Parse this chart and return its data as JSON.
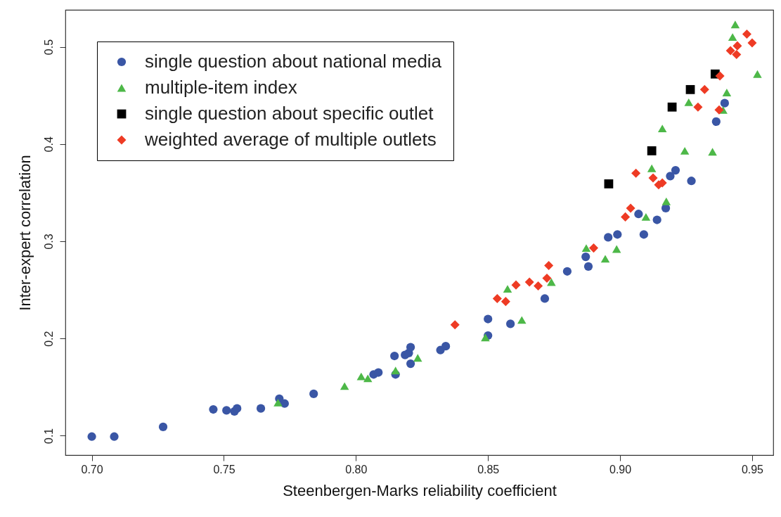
{
  "chart_data": {
    "type": "scatter",
    "xlabel": "Steenbergen-Marks reliability coefficient",
    "ylabel": "Inter-expert correlation",
    "xlim": [
      0.69,
      0.958
    ],
    "ylim": [
      0.08,
      0.538
    ],
    "xticks": [
      {
        "value": 0.7,
        "label": "0.70"
      },
      0.75,
      {
        "value": 0.8,
        "label": "0.80"
      },
      0.85,
      {
        "value": 0.9,
        "label": "0.90"
      },
      0.95
    ],
    "yticks": [
      0.1,
      0.2,
      0.3,
      0.4,
      0.5
    ],
    "grid": false,
    "legend": "top left",
    "series": [
      {
        "name": "single question about national media",
        "color": "#3a56a5",
        "marker": "circle",
        "x": [
          0.7,
          0.7085,
          0.727,
          0.746,
          0.751,
          0.754,
          0.755,
          0.764,
          0.771,
          0.773,
          0.784,
          0.8067,
          0.8085,
          0.815,
          0.8146,
          0.8186,
          0.82,
          0.8207,
          0.8207,
          0.832,
          0.834,
          0.85,
          0.85,
          0.8585,
          0.8715,
          0.88,
          0.887,
          0.888,
          0.8955,
          0.899,
          0.909,
          0.907,
          0.914,
          0.921,
          0.919,
          0.927,
          0.9396,
          0.9364,
          0.9173
        ],
        "values": [
          0.099,
          0.099,
          0.109,
          0.127,
          0.126,
          0.125,
          0.128,
          0.128,
          0.138,
          0.133,
          0.143,
          0.163,
          0.165,
          0.163,
          0.182,
          0.183,
          0.185,
          0.191,
          0.174,
          0.188,
          0.192,
          0.22,
          0.203,
          0.215,
          0.241,
          0.269,
          0.284,
          0.274,
          0.304,
          0.307,
          0.307,
          0.328,
          0.322,
          0.373,
          0.367,
          0.362,
          0.442,
          0.423,
          0.334
        ]
      },
      {
        "name": "multiple-item index",
        "color": "#4db848",
        "marker": "triangle",
        "x": [
          0.7705,
          0.7957,
          0.802,
          0.8045,
          0.815,
          0.8234,
          0.849,
          0.8574,
          0.8628,
          0.874,
          0.8872,
          0.8944,
          0.8987,
          0.9098,
          0.912,
          0.9175,
          0.916,
          0.9245,
          0.935,
          0.926,
          0.9404,
          0.939,
          0.9426,
          0.9436,
          0.952
        ],
        "values": [
          0.134,
          0.151,
          0.161,
          0.159,
          0.167,
          0.18,
          0.201,
          0.251,
          0.219,
          0.258,
          0.293,
          0.282,
          0.292,
          0.325,
          0.375,
          0.341,
          0.416,
          0.393,
          0.392,
          0.443,
          0.453,
          0.435,
          0.51,
          0.523,
          0.472
        ]
      },
      {
        "name": "single question about specific outlet",
        "color": "#000000",
        "marker": "square",
        "x": [
          0.8957,
          0.912,
          0.9197,
          0.9266,
          0.936
        ],
        "values": [
          0.359,
          0.393,
          0.438,
          0.456,
          0.472
        ]
      },
      {
        "name": "weighted average of multiple outlets",
        "color": "#ee3b24",
        "marker": "diamond",
        "x": [
          0.8375,
          0.8535,
          0.8567,
          0.8606,
          0.8657,
          0.869,
          0.8723,
          0.873,
          0.89,
          0.902,
          0.904,
          0.906,
          0.9125,
          0.9146,
          0.916,
          0.9295,
          0.932,
          0.9378,
          0.9375,
          0.948,
          0.95,
          0.9444,
          0.9418,
          0.9441
        ],
        "values": [
          0.214,
          0.241,
          0.238,
          0.255,
          0.258,
          0.254,
          0.262,
          0.275,
          0.293,
          0.325,
          0.334,
          0.37,
          0.365,
          0.358,
          0.36,
          0.438,
          0.456,
          0.47,
          0.435,
          0.513,
          0.504,
          0.501,
          0.496,
          0.492
        ]
      }
    ]
  }
}
